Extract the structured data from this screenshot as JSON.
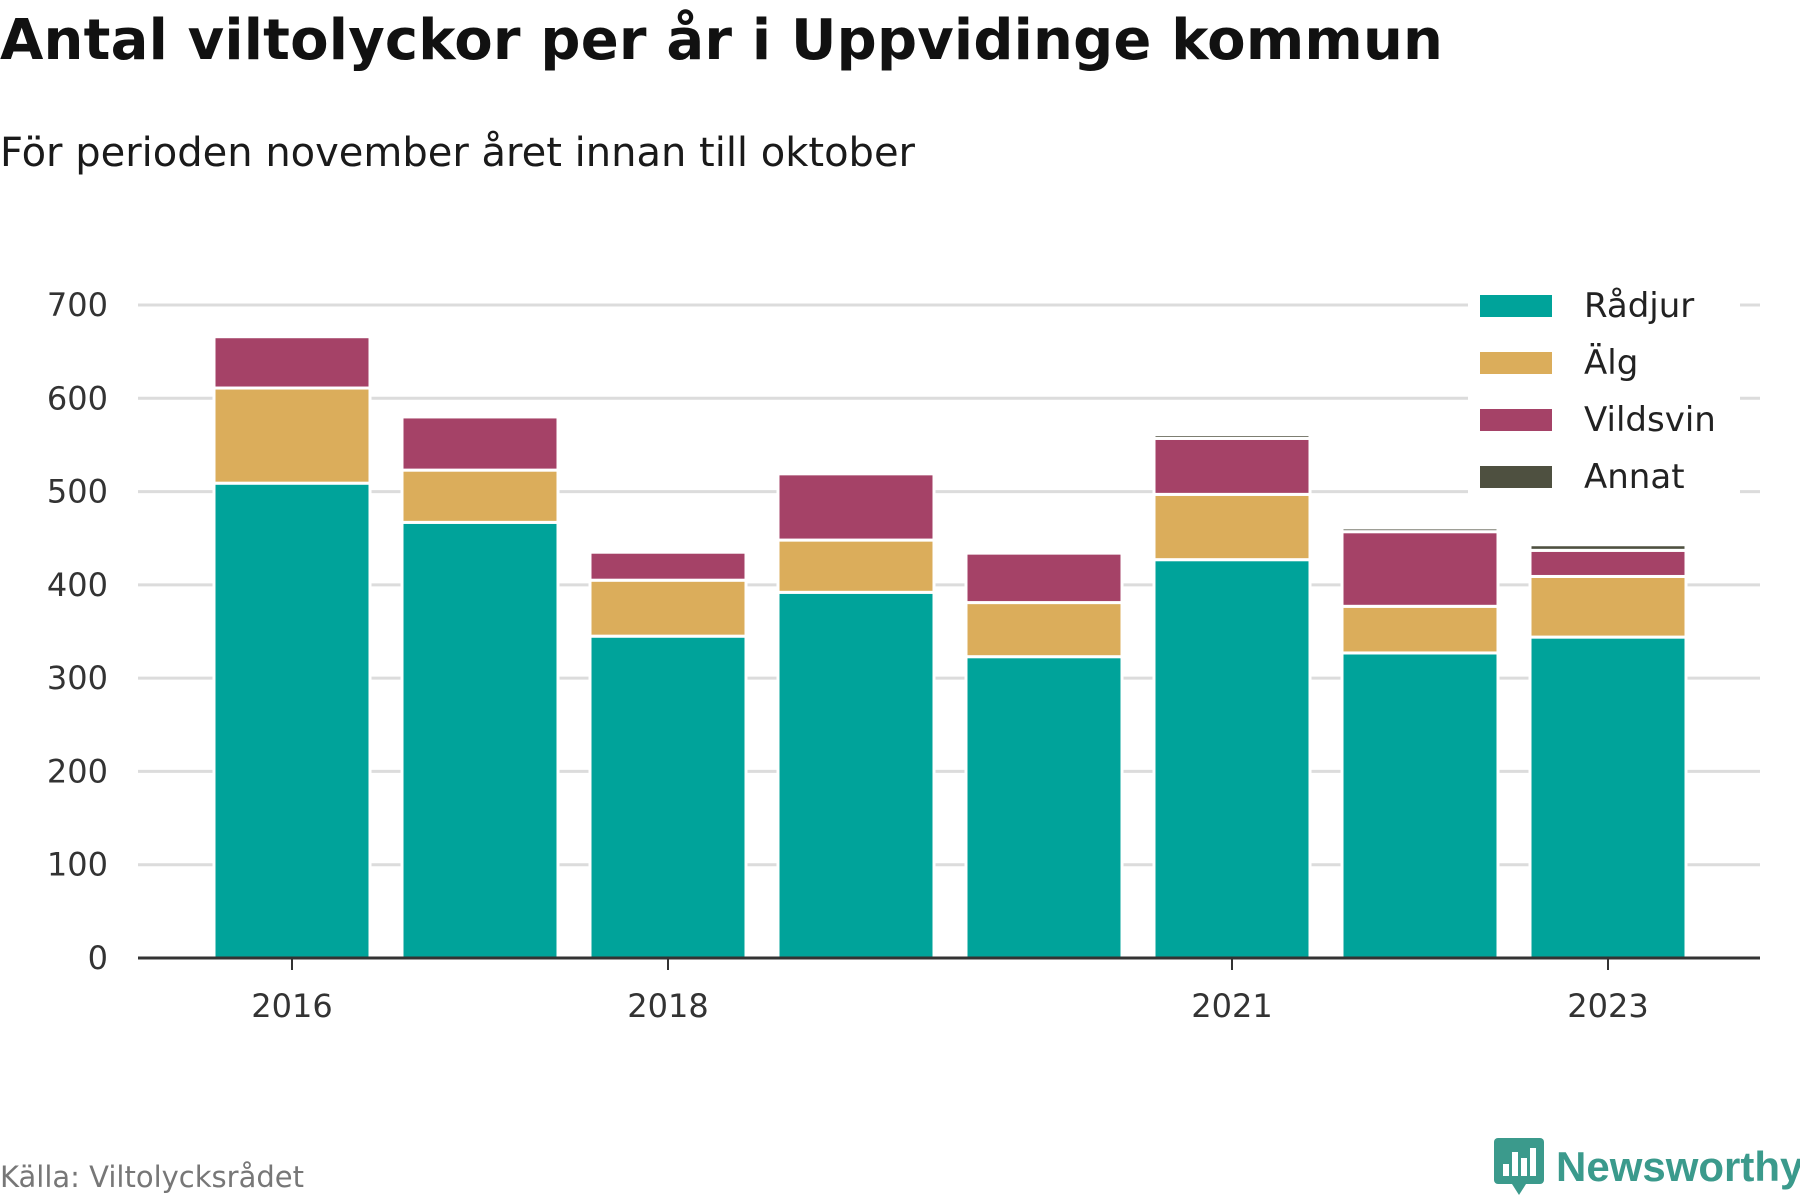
{
  "title": "Antal viltolyckor per år i Uppvidinge kommun",
  "subtitle": "För perioden november året innan till oktober",
  "source": "Källa: Viltolycksrådet",
  "brand": "Newsworthy",
  "colors": {
    "Rådjur": "#00a39a",
    "Älg": "#dbad5b",
    "Vildsvin": "#a54267",
    "Annat": "#4e5040",
    "brand": "#3b9a8c"
  },
  "chart_data": {
    "type": "bar",
    "stacked": true,
    "x": [
      2016,
      2017,
      2018,
      2019,
      2020,
      2021,
      2022,
      2023
    ],
    "x_tick_labels": [
      "2016",
      "2018",
      "2021",
      "2023"
    ],
    "ylim": [
      0,
      700
    ],
    "y_ticks": [
      0,
      100,
      200,
      300,
      400,
      500,
      600,
      700
    ],
    "grid": true,
    "legend_position": "top-right",
    "series": [
      {
        "name": "Rådjur",
        "values": [
          509,
          467,
          345,
          392,
          323,
          427,
          327,
          344
        ]
      },
      {
        "name": "Älg",
        "values": [
          102,
          56,
          60,
          56,
          58,
          70,
          50,
          65
        ]
      },
      {
        "name": "Vildsvin",
        "values": [
          55,
          57,
          30,
          71,
          53,
          60,
          80,
          28
        ]
      },
      {
        "name": "Annat",
        "values": [
          0,
          0,
          0,
          0,
          0,
          4,
          4,
          6
        ]
      }
    ]
  }
}
